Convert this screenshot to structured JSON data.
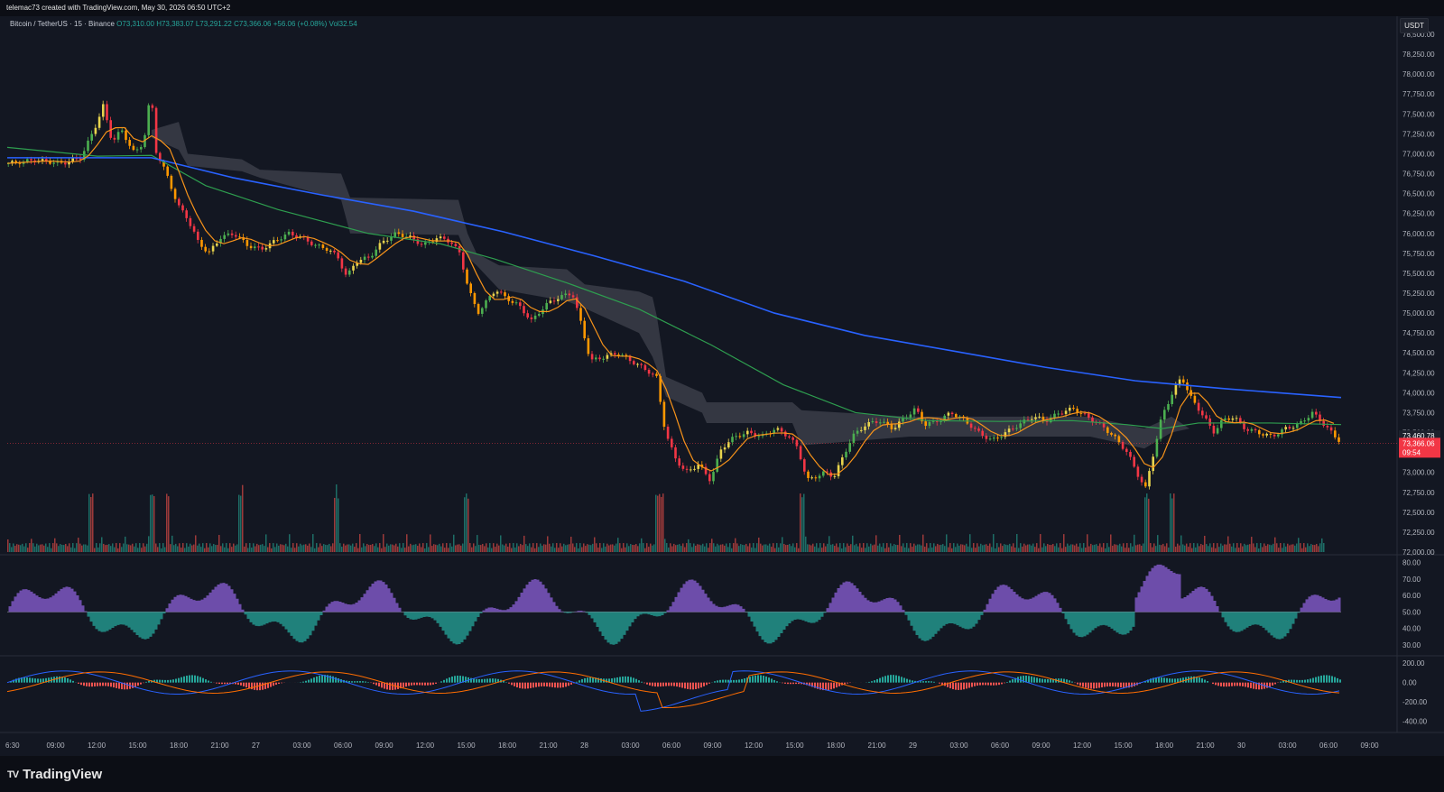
{
  "header": {
    "credit": "telemac73 created with TradingView.com, May 30, 2026 06:50 UTC+2"
  },
  "legend": {
    "symbol": "Bitcoin / TetherUS · 15 · Binance",
    "open": "O73,310.00",
    "high": "H73,383.07",
    "low": "L73,291.22",
    "close": "C73,366.06",
    "change": "+56.06 (+0.08%)",
    "vol": "Vol32.54"
  },
  "unit_badge": "USDT",
  "brand": {
    "logo": "TV",
    "name": "TradingView"
  },
  "colors": {
    "bg": "#131722",
    "up": "#26a69a",
    "down": "#ef5350",
    "ma_blue": "#2962ff",
    "ma_green": "#2e9e4f",
    "ma_orange": "#f7931a"
  },
  "chart_data": [
    {
      "type": "candlestick",
      "price_axis": {
        "ticks": [
          "78,500.00",
          "78,250.00",
          "78,000.00",
          "77,750.00",
          "77,500.00",
          "77,250.00",
          "77,000.00",
          "76,750.00",
          "76,500.00",
          "76,250.00",
          "76,000.00",
          "75,750.00",
          "75,500.00",
          "75,250.00",
          "75,000.00",
          "74,750.00",
          "74,500.00",
          "74,250.00",
          "74,000.00",
          "73,750.00",
          "73,500.00",
          "73,250.00",
          "73,000.00",
          "72,750.00",
          "72,500.00",
          "72,250.00",
          "72,000.00"
        ],
        "ylim": [
          72000,
          78500
        ]
      },
      "time_axis": [
        "6:30",
        "09:00",
        "12:00",
        "15:00",
        "18:00",
        "21:00",
        "27",
        "03:00",
        "06:00",
        "09:00",
        "12:00",
        "15:00",
        "18:00",
        "21:00",
        "28",
        "03:00",
        "06:00",
        "09:00",
        "12:00",
        "15:00",
        "18:00",
        "21:00",
        "29",
        "03:00",
        "06:00",
        "09:00",
        "12:00",
        "15:00",
        "18:00",
        "21:00",
        "30",
        "03:00",
        "06:00",
        "09:00"
      ],
      "labels": {
        "ma_last": "73,460.78",
        "last_price": "73,366.06",
        "countdown": "09:54"
      },
      "price_path": [
        [
          0,
          76880
        ],
        [
          30,
          76920
        ],
        [
          60,
          76880
        ],
        [
          80,
          76950
        ],
        [
          95,
          77300
        ],
        [
          105,
          77600
        ],
        [
          115,
          77150
        ],
        [
          125,
          77300
        ],
        [
          140,
          77000
        ],
        [
          150,
          77150
        ],
        [
          158,
          77800
        ],
        [
          163,
          77050
        ],
        [
          175,
          76750
        ],
        [
          188,
          76350
        ],
        [
          198,
          76200
        ],
        [
          210,
          75900
        ],
        [
          222,
          75750
        ],
        [
          235,
          75950
        ],
        [
          250,
          76000
        ],
        [
          265,
          75850
        ],
        [
          280,
          75800
        ],
        [
          295,
          75900
        ],
        [
          310,
          76000
        ],
        [
          325,
          75950
        ],
        [
          340,
          75850
        ],
        [
          355,
          75800
        ],
        [
          365,
          75700
        ],
        [
          375,
          75450
        ],
        [
          385,
          75650
        ],
        [
          400,
          75700
        ],
        [
          415,
          75900
        ],
        [
          430,
          76000
        ],
        [
          445,
          75950
        ],
        [
          460,
          75850
        ],
        [
          475,
          75950
        ],
        [
          490,
          75900
        ],
        [
          500,
          75750
        ],
        [
          510,
          75300
        ],
        [
          520,
          75000
        ],
        [
          530,
          75150
        ],
        [
          540,
          75300
        ],
        [
          550,
          75200
        ],
        [
          565,
          75100
        ],
        [
          580,
          74900
        ],
        [
          595,
          75100
        ],
        [
          610,
          75200
        ],
        [
          625,
          75250
        ],
        [
          635,
          74850
        ],
        [
          645,
          74400
        ],
        [
          660,
          74450
        ],
        [
          675,
          74500
        ],
        [
          690,
          74400
        ],
        [
          705,
          74300
        ],
        [
          718,
          74200
        ],
        [
          728,
          73500
        ],
        [
          738,
          73200
        ],
        [
          750,
          73000
        ],
        [
          765,
          73100
        ],
        [
          778,
          72900
        ],
        [
          790,
          73300
        ],
        [
          805,
          73450
        ],
        [
          820,
          73500
        ],
        [
          835,
          73450
        ],
        [
          850,
          73550
        ],
        [
          865,
          73450
        ],
        [
          875,
          73300
        ],
        [
          885,
          72900
        ],
        [
          895,
          72950
        ],
        [
          905,
          73000
        ],
        [
          915,
          72950
        ],
        [
          925,
          73200
        ],
        [
          935,
          73450
        ],
        [
          950,
          73600
        ],
        [
          965,
          73650
        ],
        [
          980,
          73550
        ],
        [
          995,
          73700
        ],
        [
          1005,
          73800
        ],
        [
          1015,
          73600
        ],
        [
          1030,
          73650
        ],
        [
          1045,
          73750
        ],
        [
          1060,
          73650
        ],
        [
          1075,
          73500
        ],
        [
          1090,
          73400
        ],
        [
          1105,
          73500
        ],
        [
          1120,
          73600
        ],
        [
          1135,
          73700
        ],
        [
          1150,
          73650
        ],
        [
          1165,
          73750
        ],
        [
          1180,
          73800
        ],
        [
          1195,
          73700
        ],
        [
          1210,
          73600
        ],
        [
          1225,
          73450
        ],
        [
          1240,
          73250
        ],
        [
          1250,
          73000
        ],
        [
          1260,
          72800
        ],
        [
          1268,
          73200
        ],
        [
          1278,
          73700
        ],
        [
          1290,
          74000
        ],
        [
          1300,
          74200
        ],
        [
          1312,
          73900
        ],
        [
          1325,
          73700
        ],
        [
          1335,
          73500
        ],
        [
          1345,
          73650
        ],
        [
          1358,
          73700
        ],
        [
          1370,
          73550
        ],
        [
          1385,
          73500
        ],
        [
          1400,
          73450
        ],
        [
          1415,
          73550
        ],
        [
          1430,
          73600
        ],
        [
          1445,
          73750
        ],
        [
          1458,
          73600
        ],
        [
          1470,
          73450
        ],
        [
          1478,
          73366
        ]
      ],
      "series": [
        {
          "name": "",
          "kind": "ma_blue",
          "points": [
            [
              0,
              76950
            ],
            [
              100,
              76950
            ],
            [
              160,
              76950
            ],
            [
              250,
              76700
            ],
            [
              350,
              76480
            ],
            [
              450,
              76280
            ],
            [
              550,
              76020
            ],
            [
              650,
              75720
            ],
            [
              750,
              75400
            ],
            [
              850,
              75000
            ],
            [
              950,
              74720
            ],
            [
              1050,
              74520
            ],
            [
              1150,
              74320
            ],
            [
              1250,
              74150
            ],
            [
              1350,
              74050
            ],
            [
              1478,
              73940
            ]
          ]
        },
        {
          "name": "",
          "kind": "ma_green",
          "points": [
            [
              0,
              77080
            ],
            [
              100,
              76970
            ],
            [
              160,
              76980
            ],
            [
              220,
              76600
            ],
            [
              300,
              76300
            ],
            [
              400,
              76000
            ],
            [
              480,
              75870
            ],
            [
              540,
              75680
            ],
            [
              620,
              75380
            ],
            [
              700,
              75050
            ],
            [
              780,
              74600
            ],
            [
              860,
              74100
            ],
            [
              940,
              73750
            ],
            [
              1020,
              73650
            ],
            [
              1100,
              73640
            ],
            [
              1180,
              73650
            ],
            [
              1240,
              73600
            ],
            [
              1280,
              73550
            ],
            [
              1320,
              73620
            ],
            [
              1400,
              73620
            ],
            [
              1478,
              73600
            ]
          ]
        },
        {
          "name": "",
          "kind": "cloud",
          "upper": [
            [
              160,
              77300
            ],
            [
              190,
              77400
            ],
            [
              200,
              77000
            ],
            [
              260,
              76930
            ],
            [
              280,
              76800
            ],
            [
              370,
              76750
            ],
            [
              380,
              76450
            ],
            [
              500,
              76420
            ],
            [
              510,
              76000
            ],
            [
              520,
              75750
            ],
            [
              545,
              75600
            ],
            [
              620,
              75550
            ],
            [
              640,
              75360
            ],
            [
              700,
              75270
            ],
            [
              715,
              75200
            ],
            [
              720,
              74950
            ],
            [
              730,
              74200
            ],
            [
              770,
              74000
            ],
            [
              775,
              73880
            ],
            [
              870,
              73880
            ],
            [
              880,
              73780
            ],
            [
              1000,
              73700
            ],
            [
              1200,
              73700
            ],
            [
              1260,
              73550
            ],
            [
              1290,
              73700
            ],
            [
              1310,
              73550
            ]
          ],
          "lower": [
            [
              160,
              77200
            ],
            [
              190,
              77050
            ],
            [
              200,
              76850
            ],
            [
              260,
              76780
            ],
            [
              280,
              76700
            ],
            [
              370,
              76420
            ],
            [
              380,
              76000
            ],
            [
              500,
              75980
            ],
            [
              510,
              75700
            ],
            [
              520,
              75600
            ],
            [
              545,
              75300
            ],
            [
              620,
              75150
            ],
            [
              640,
              75060
            ],
            [
              700,
              74750
            ],
            [
              715,
              74450
            ],
            [
              720,
              74300
            ],
            [
              730,
              73950
            ],
            [
              770,
              73750
            ],
            [
              775,
              73620
            ],
            [
              870,
              73620
            ],
            [
              880,
              73340
            ],
            [
              1000,
              73450
            ],
            [
              1200,
              73450
            ],
            [
              1260,
              73300
            ],
            [
              1290,
              73500
            ],
            [
              1310,
              73550
            ]
          ]
        }
      ]
    },
    {
      "type": "bar",
      "name": "",
      "ylim": [
        0,
        100
      ]
    },
    {
      "type": "area",
      "name": "",
      "ticks": [
        "80.00",
        "70.00",
        "60.00",
        "50.00",
        "40.00",
        "30.00"
      ],
      "ylim": [
        25,
        82
      ],
      "baseline": 50
    },
    {
      "type": "bar",
      "name": "",
      "ticks": [
        "200.00",
        "0.00",
        "-200.00",
        "-400.00"
      ],
      "ylim": [
        -460,
        230
      ]
    }
  ]
}
